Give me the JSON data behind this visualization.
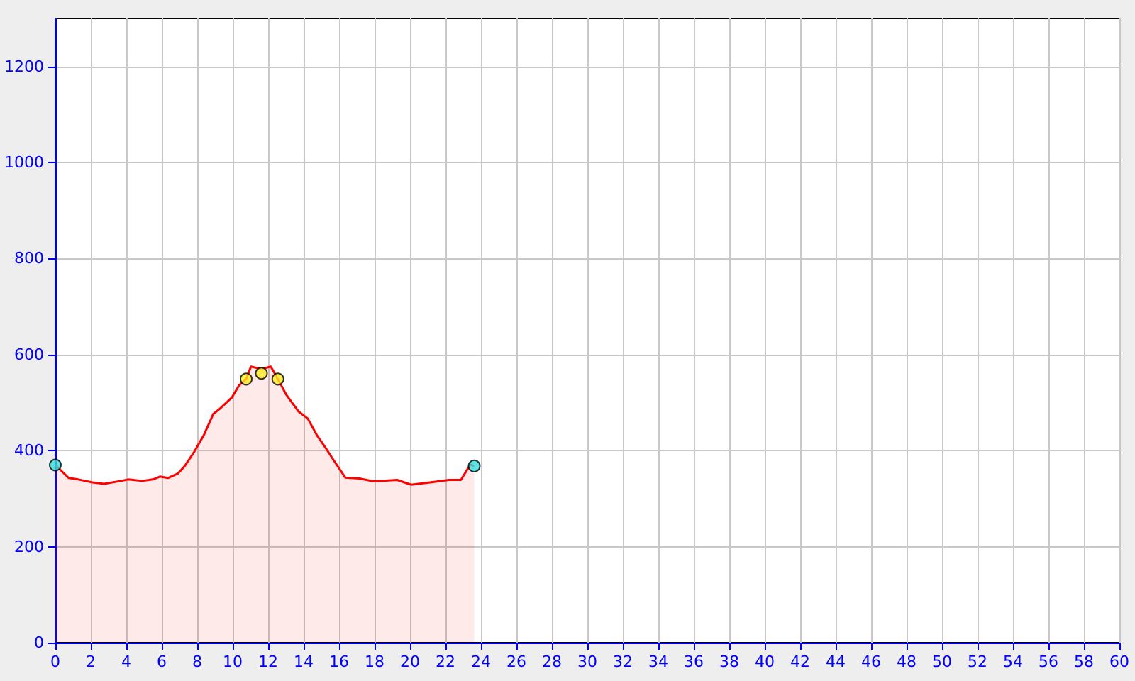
{
  "chart_data": {
    "type": "area",
    "xlim": [
      0,
      60
    ],
    "xticks": [
      0,
      2,
      4,
      6,
      8,
      10,
      12,
      14,
      16,
      18,
      20,
      22,
      24,
      26,
      28,
      30,
      32,
      34,
      36,
      38,
      40,
      42,
      44,
      46,
      48,
      50,
      52,
      54,
      56,
      58,
      60
    ],
    "ylim": [
      0,
      1300
    ],
    "yticks": [
      0,
      200,
      400,
      600,
      800,
      1000,
      1200
    ],
    "grid": true,
    "line_style": "solid",
    "series": [
      {
        "color": "#ff0000",
        "marker": "none",
        "x": [
          0,
          0.76,
          1.3,
          2.1,
          2.75,
          3.7,
          4.1,
          4.9,
          5.5,
          5.9,
          6.35,
          6.9,
          7.3,
          7.84,
          8.37,
          8.9,
          9.3,
          9.96,
          10.36,
          10.76,
          11.03,
          11.62,
          12.15,
          12.55,
          13.03,
          13.7,
          14.23,
          14.75,
          15.29,
          15.82,
          16.35,
          17.15,
          17.95,
          19.27,
          20.07,
          21.13,
          22.2,
          22.87,
          23.4,
          23.62
        ],
        "values": [
          370,
          343,
          340,
          334,
          331,
          337,
          340,
          337,
          340,
          346,
          343,
          352,
          368,
          398,
          432,
          476,
          488,
          511,
          536,
          549,
          575,
          570,
          575,
          549,
          516,
          482,
          467,
          432,
          403,
          373,
          344,
          342,
          336,
          339,
          329,
          334,
          339,
          339,
          371,
          368
        ]
      },
      {
        "type": "scatter",
        "marker": "circle",
        "x": [
          0,
          10.76,
          11.62,
          12.55,
          23.62
        ],
        "values": [
          370,
          549,
          561,
          549,
          368
        ],
        "colors": [
          "#33dddd",
          "#ffee22",
          "#ffee22",
          "#ffee22",
          "#33dddd"
        ]
      }
    ]
  }
}
